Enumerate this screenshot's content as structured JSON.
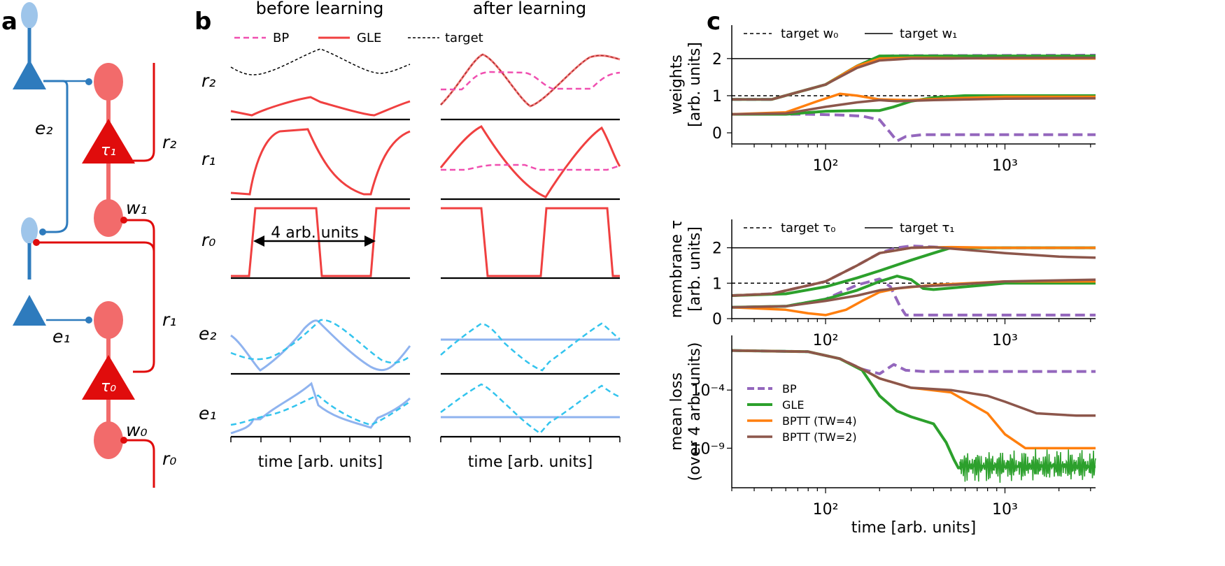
{
  "panel_labels": {
    "a": "a",
    "b": "b",
    "c": "c"
  },
  "colors": {
    "blue_dark": "#2e7bbd",
    "blue_light": "#9ec5ea",
    "red_dark": "#e00c0c",
    "red_light": "#f26b6b",
    "gle_red": "#f04040",
    "bp_pink": "#f04fb0",
    "err_solid": "#8fb3ef",
    "err_dash": "#33c4ee",
    "bp_purple": "#9467bd",
    "gle_green": "#2ca02c",
    "tw4_orange": "#ff7f0e",
    "tw2_brown": "#8c564b"
  },
  "panel_a": {
    "labels": {
      "e2": "e₂",
      "e1": "e₁",
      "r2": "r₂",
      "r1": "r₁",
      "r0": "r₀",
      "w1": "w₁",
      "w0": "w₀",
      "tau1": "τ₁",
      "tau0": "τ₀"
    }
  },
  "panel_b": {
    "col_titles": [
      "before learning",
      "after learning"
    ],
    "legend": [
      "BP",
      "GLE",
      "target"
    ],
    "row_labels": [
      "r₂",
      "r₁",
      "r₀",
      "e₂",
      "e₁"
    ],
    "annotation": "4 arb. units",
    "xlabel": "time [arb. units]"
  },
  "chart_data": [
    {
      "type": "line",
      "title": "weights",
      "ylabel": "weights [arb. units]",
      "xscale": "log",
      "xlim": [
        30,
        3200
      ],
      "ylim": [
        -0.3,
        2.9
      ],
      "yticks": [
        "0",
        "1",
        "2"
      ],
      "xticks": [
        "10²",
        "10³"
      ],
      "legend": [
        "target w₀",
        "target w₁"
      ],
      "targets": [
        {
          "name": "target w₀",
          "value": 1.0,
          "style": "dashed"
        },
        {
          "name": "target w₁",
          "value": 2.0,
          "style": "solid"
        }
      ],
      "series": [
        {
          "name": "BP w₁",
          "x": [
            30,
            50,
            100,
            150,
            200,
            250,
            280,
            350,
            3200
          ],
          "y": [
            0.9,
            0.9,
            1.3,
            1.8,
            2.06,
            2.08,
            2.08,
            2.08,
            2.09
          ]
        },
        {
          "name": "BP w₀",
          "x": [
            30,
            80,
            120,
            160,
            200,
            230,
            250,
            280,
            350,
            3200
          ],
          "y": [
            0.5,
            0.5,
            0.48,
            0.45,
            0.35,
            0.0,
            -0.22,
            -0.1,
            -0.05,
            -0.05
          ]
        },
        {
          "name": "GLE w₁",
          "x": [
            30,
            50,
            100,
            150,
            200,
            300,
            1000,
            3200
          ],
          "y": [
            0.9,
            0.9,
            1.3,
            1.8,
            2.07,
            2.07,
            2.07,
            2.07
          ]
        },
        {
          "name": "GLE w₀",
          "x": [
            30,
            60,
            100,
            150,
            200,
            240,
            300,
            400,
            600,
            1000,
            3200
          ],
          "y": [
            0.5,
            0.5,
            0.58,
            0.6,
            0.6,
            0.7,
            0.85,
            0.95,
            1.0,
            1.0,
            1.0
          ]
        },
        {
          "name": "BPTT (TW=4) w₁",
          "x": [
            30,
            50,
            100,
            150,
            200,
            300,
            1000,
            3200
          ],
          "y": [
            0.9,
            0.9,
            1.3,
            1.8,
            2.0,
            2.02,
            2.0,
            2.0
          ]
        },
        {
          "name": "BPTT (TW=4) w₀",
          "x": [
            30,
            60,
            90,
            120,
            150,
            200,
            300,
            500,
            1000,
            3200
          ],
          "y": [
            0.5,
            0.55,
            0.85,
            1.05,
            1.0,
            0.9,
            0.88,
            0.93,
            0.97,
            0.97
          ]
        },
        {
          "name": "BPTT (TW=2) w₁",
          "x": [
            30,
            50,
            100,
            150,
            200,
            300,
            500,
            1000,
            3200
          ],
          "y": [
            0.9,
            0.9,
            1.3,
            1.75,
            1.95,
            2.0,
            2.0,
            2.02,
            2.02
          ]
        },
        {
          "name": "BPTT (TW=2) w₀",
          "x": [
            30,
            60,
            100,
            150,
            200,
            250,
            400,
            1000,
            3200
          ],
          "y": [
            0.5,
            0.52,
            0.7,
            0.82,
            0.88,
            0.85,
            0.88,
            0.92,
            0.93
          ]
        }
      ]
    },
    {
      "type": "line",
      "title": "membrane tau",
      "ylabel": "membrane τ [arb. units]",
      "xscale": "log",
      "xlim": [
        30,
        3200
      ],
      "ylim": [
        0,
        2.8
      ],
      "yticks": [
        "0",
        "1",
        "2"
      ],
      "xticks": [
        "10²",
        "10³"
      ],
      "legend": [
        "target τ₀",
        "target τ₁"
      ],
      "targets": [
        {
          "name": "target τ₀",
          "value": 1.0,
          "style": "dashed"
        },
        {
          "name": "target τ₁",
          "value": 2.0,
          "style": "solid"
        }
      ],
      "series": [
        {
          "name": "BP τ₁",
          "x": [
            30,
            50,
            100,
            150,
            200,
            250,
            300,
            500,
            3200
          ],
          "y": [
            0.65,
            0.7,
            1.05,
            1.5,
            1.85,
            2.0,
            2.05,
            2.0,
            2.0
          ]
        },
        {
          "name": "BP τ₀",
          "x": [
            30,
            60,
            100,
            150,
            200,
            230,
            260,
            280,
            350,
            3200
          ],
          "y": [
            0.32,
            0.35,
            0.55,
            0.95,
            1.12,
            0.9,
            0.35,
            0.1,
            0.1,
            0.1
          ]
        },
        {
          "name": "GLE τ₁",
          "x": [
            30,
            60,
            100,
            150,
            200,
            300,
            400,
            500,
            1000,
            3200
          ],
          "y": [
            0.65,
            0.7,
            0.9,
            1.15,
            1.35,
            1.65,
            1.85,
            2.0,
            2.0,
            2.0
          ]
        },
        {
          "name": "GLE τ₀",
          "x": [
            30,
            60,
            100,
            150,
            200,
            250,
            300,
            350,
            400,
            600,
            1000,
            3200
          ],
          "y": [
            0.32,
            0.35,
            0.55,
            0.8,
            1.05,
            1.2,
            1.1,
            0.85,
            0.82,
            0.9,
            1.0,
            1.0
          ]
        },
        {
          "name": "BPTT (TW=4) τ₁",
          "x": [
            30,
            50,
            100,
            150,
            200,
            300,
            500,
            1000,
            3200
          ],
          "y": [
            0.65,
            0.7,
            1.05,
            1.5,
            1.85,
            2.0,
            2.02,
            2.0,
            2.0
          ]
        },
        {
          "name": "BPTT (TW=4) τ₀",
          "x": [
            30,
            60,
            80,
            100,
            130,
            160,
            200,
            250,
            400,
            1000,
            3200
          ],
          "y": [
            0.32,
            0.25,
            0.15,
            0.1,
            0.25,
            0.5,
            0.75,
            0.85,
            0.95,
            1.05,
            1.05
          ]
        },
        {
          "name": "BPTT (TW=2) τ₁",
          "x": [
            30,
            50,
            100,
            150,
            200,
            300,
            400,
            1000,
            2000,
            3200
          ],
          "y": [
            0.65,
            0.7,
            1.05,
            1.5,
            1.85,
            2.0,
            2.02,
            1.85,
            1.75,
            1.72
          ]
        },
        {
          "name": "BPTT (TW=2) τ₀",
          "x": [
            30,
            60,
            100,
            150,
            200,
            300,
            500,
            1000,
            3200
          ],
          "y": [
            0.32,
            0.35,
            0.5,
            0.65,
            0.8,
            0.9,
            0.95,
            1.05,
            1.1
          ]
        }
      ]
    },
    {
      "type": "line",
      "title": "mean loss",
      "ylabel": "mean loss (over 4 arb. units)",
      "xlabel": "time [arb. units]",
      "xscale": "log",
      "yscale": "log",
      "xlim": [
        30,
        3200
      ],
      "ylim_log10": [
        -12.4,
        0.7
      ],
      "yticks": [
        "10⁻⁴",
        "10⁻⁹"
      ],
      "xticks": [
        "10²",
        "10³"
      ],
      "legend": [
        "BP",
        "GLE",
        "BPTT (TW=4)",
        "BPTT (TW=2)"
      ],
      "series": [
        {
          "name": "BP",
          "x": [
            30,
            80,
            120,
            160,
            200,
            240,
            280,
            350,
            3200
          ],
          "log10_y": [
            -0.6,
            -0.7,
            -1.3,
            -2.2,
            -2.6,
            -1.8,
            -2.3,
            -2.4,
            -2.4
          ]
        },
        {
          "name": "GLE",
          "x": [
            30,
            80,
            120,
            160,
            200,
            250,
            300,
            400,
            470,
            520,
            550,
            600,
            1000,
            2000,
            3200
          ],
          "log10_y": [
            -0.6,
            -0.7,
            -1.3,
            -2.3,
            -4.5,
            -5.8,
            -6.3,
            -6.9,
            -8.5,
            -10.0,
            -10.7,
            -10.5,
            -10.6,
            -10.5,
            -10.6
          ]
        },
        {
          "name": "BPTT (TW=4)",
          "x": [
            30,
            80,
            120,
            160,
            200,
            300,
            500,
            800,
            1000,
            1300,
            3200
          ],
          "log10_y": [
            -0.6,
            -0.7,
            -1.3,
            -2.2,
            -3.0,
            -3.8,
            -4.2,
            -6.0,
            -7.8,
            -9.0,
            -9.0
          ]
        },
        {
          "name": "BPTT (TW=2)",
          "x": [
            30,
            80,
            120,
            160,
            200,
            300,
            500,
            800,
            1000,
            1500,
            2500,
            3200
          ],
          "log10_y": [
            -0.6,
            -0.7,
            -1.3,
            -2.2,
            -3.0,
            -3.8,
            -4.0,
            -4.5,
            -5.0,
            -6.0,
            -6.2,
            -6.2
          ]
        }
      ]
    }
  ]
}
